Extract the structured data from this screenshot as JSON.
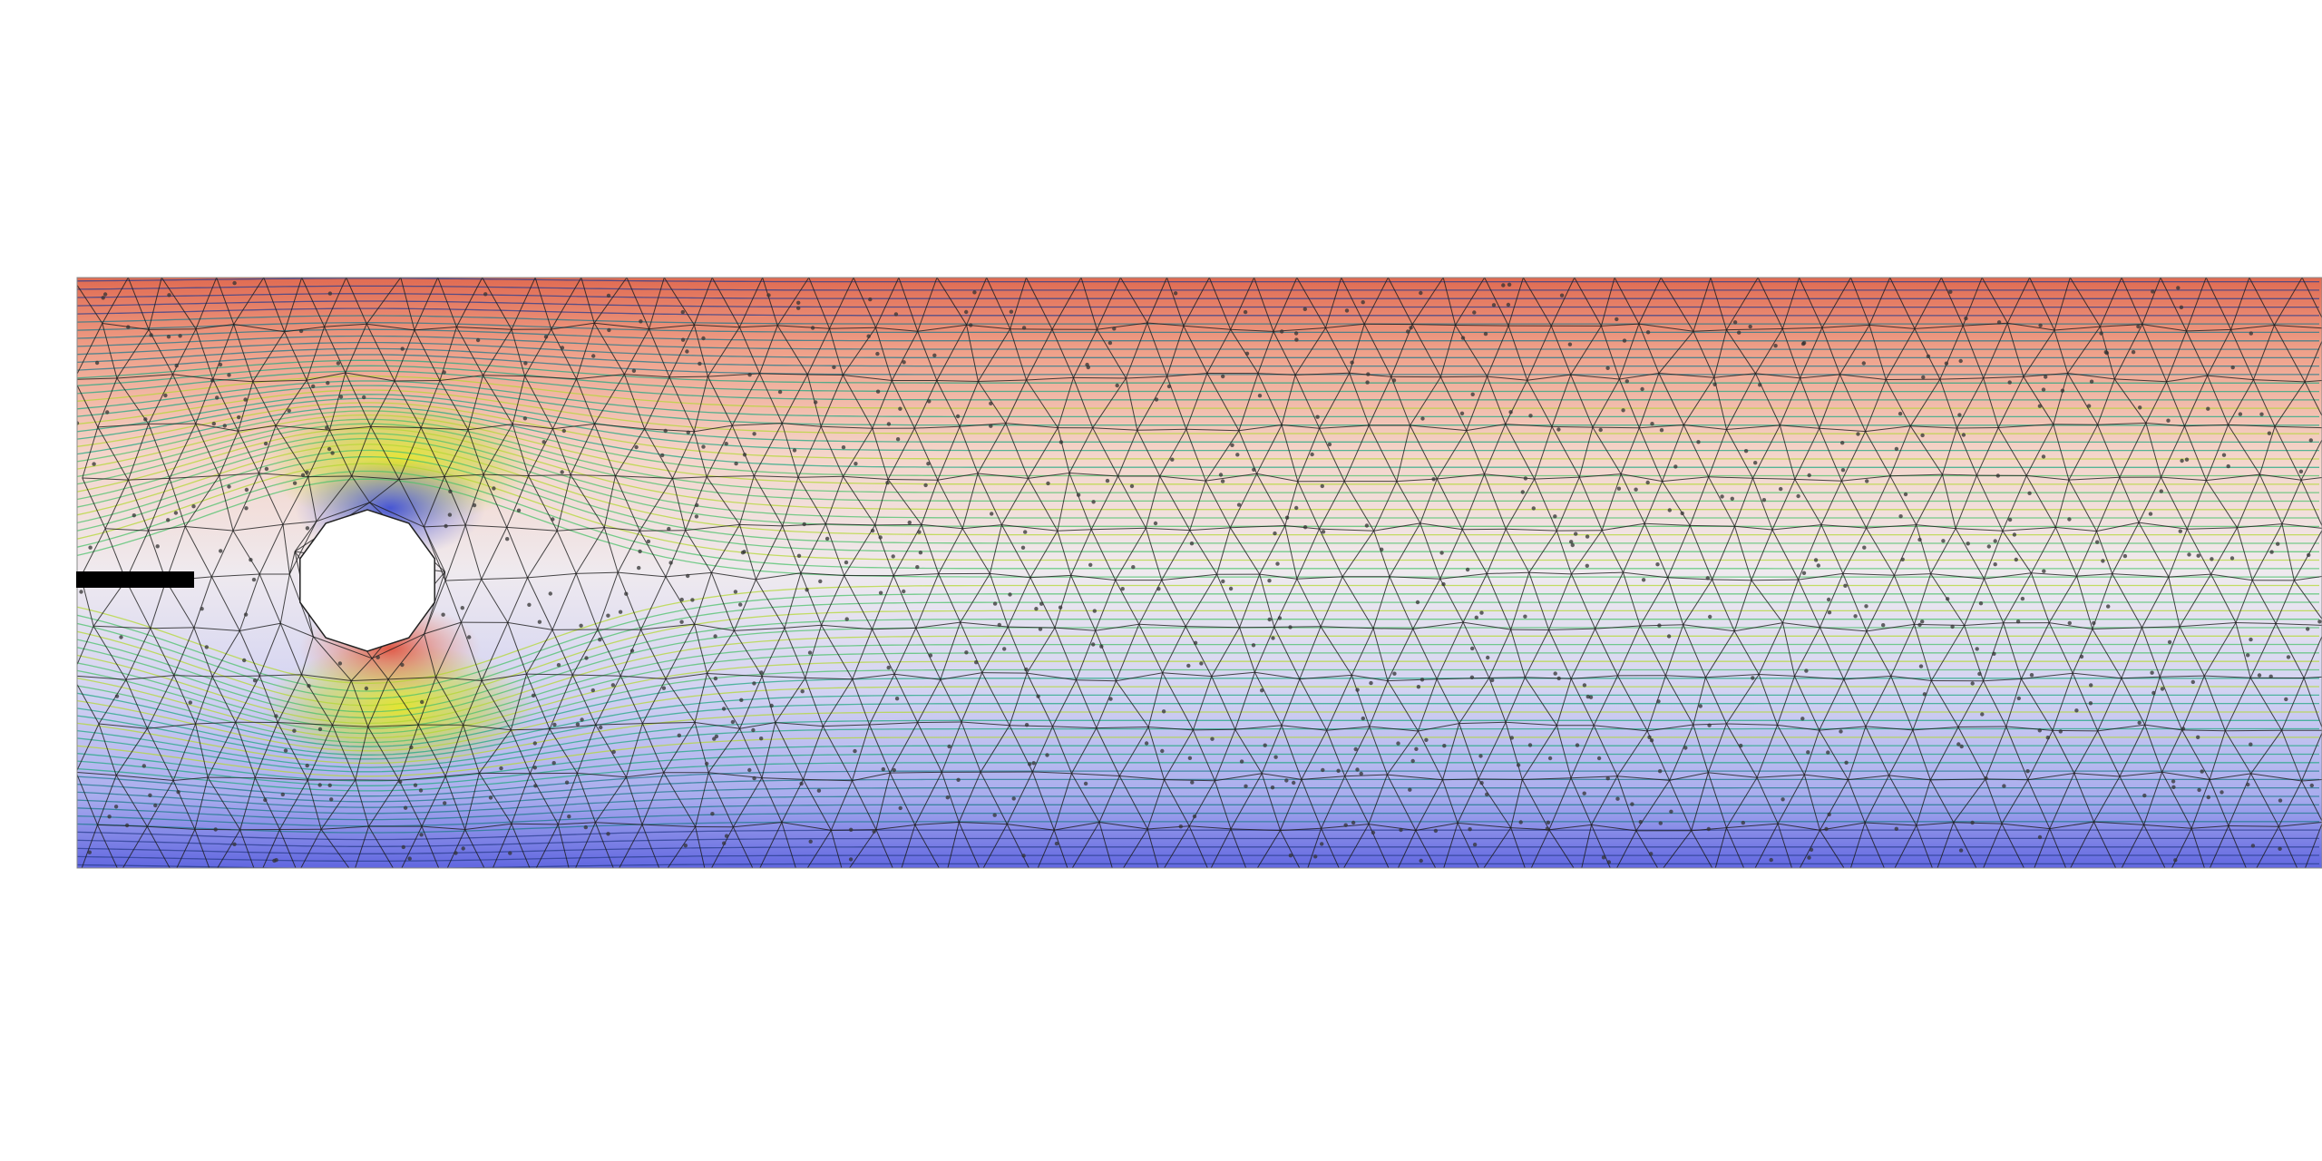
{
  "scene": {
    "kind": "flow-past-cylinder-simulation",
    "background_color": "#ffffff",
    "channel": {
      "colormap": [
        "#5b64e0",
        "#b9bcef",
        "#efe9ee",
        "#f2c5b5",
        "#e0735a"
      ],
      "top_color": "#e0735a",
      "bottom_color": "#6a6fe3"
    },
    "obstacle": {
      "shape": "decagon",
      "fill": "#ffffff"
    },
    "inlet_bar": {
      "color": "#000000"
    },
    "mesh": {
      "edge_color": "#1a1a1a",
      "node_color": "#333333"
    },
    "streamlines": {
      "colors": [
        "#2a3d8f",
        "#1f7a8c",
        "#22a883",
        "#4cc26b",
        "#b3d834",
        "#e3e61e"
      ]
    },
    "icons": [
      "mesh-icon",
      "cylinder-icon",
      "streamline-icon"
    ]
  }
}
